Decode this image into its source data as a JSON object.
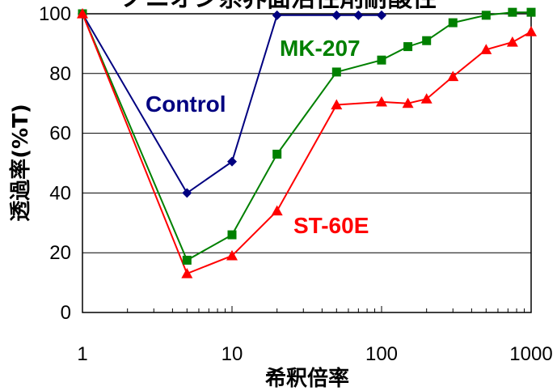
{
  "chart_data": {
    "type": "line",
    "title": "ノニオン系界面活性剤耐酸性",
    "xlabel": "希釈倍率",
    "ylabel": "透過率(%T)",
    "x_scale": "log",
    "xlim": [
      1,
      1000
    ],
    "ylim": [
      0,
      100
    ],
    "x_ticks": [
      "1",
      "10",
      "100",
      "1000"
    ],
    "y_ticks": [
      "0",
      "20",
      "40",
      "60",
      "80",
      "100"
    ],
    "grid": "horizontal",
    "series": [
      {
        "name": "Control",
        "color": "#000080",
        "marker": "diamond",
        "points": [
          [
            1,
            100
          ],
          [
            5,
            40
          ],
          [
            10,
            50.5
          ],
          [
            20,
            99.5
          ],
          [
            50,
            99.5
          ],
          [
            70,
            99.5
          ],
          [
            100,
            99.5
          ]
        ]
      },
      {
        "name": "MK-207",
        "color": "#008000",
        "marker": "square",
        "points": [
          [
            1,
            100
          ],
          [
            5,
            17.5
          ],
          [
            10,
            26
          ],
          [
            20,
            53
          ],
          [
            50,
            80.5
          ],
          [
            100,
            84.5
          ],
          [
            150,
            89
          ],
          [
            200,
            91
          ],
          [
            300,
            97
          ],
          [
            500,
            99.5
          ],
          [
            750,
            100.5
          ],
          [
            1000,
            100.5
          ]
        ]
      },
      {
        "name": "ST-60E",
        "color": "#ff0000",
        "marker": "triangle",
        "points": [
          [
            1,
            100
          ],
          [
            5,
            13
          ],
          [
            10,
            19
          ],
          [
            20,
            34
          ],
          [
            50,
            69.5
          ],
          [
            100,
            70.5
          ],
          [
            150,
            70
          ],
          [
            200,
            71.5
          ],
          [
            300,
            79
          ],
          [
            500,
            88
          ],
          [
            750,
            90.5
          ],
          [
            1000,
            94
          ]
        ]
      }
    ]
  }
}
